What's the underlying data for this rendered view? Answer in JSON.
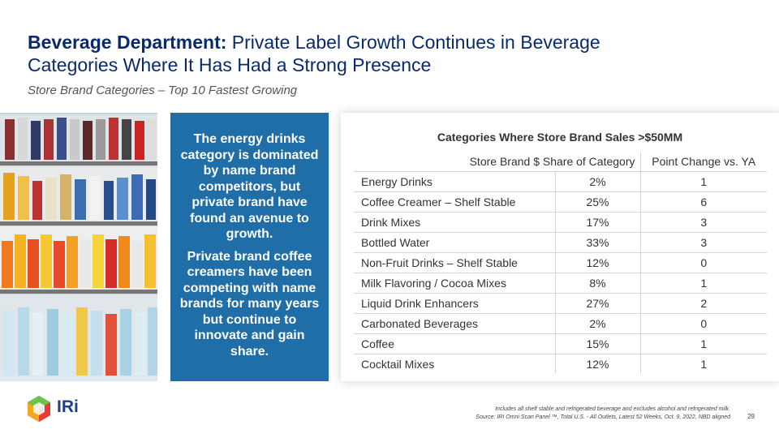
{
  "header": {
    "title_bold": "Beverage Department:",
    "title_rest": " Private Label Growth Continues in Beverage Categories Where It Has Had a Strong Presence",
    "subtitle": "Store Brand Categories – Top 10 Fastest Growing"
  },
  "callout": {
    "paragraph1": "The energy drinks category is dominated by name brand competitors, but private brand have found an avenue to growth.",
    "paragraph2": "Private brand coffee creamers have been competing with name brands for many years but continue to innovate and gain share."
  },
  "table": {
    "title": "Categories Where Store Brand Sales >$50MM",
    "col_share": "Store Brand $ Share of Category",
    "col_change": "Point Change vs. YA",
    "rows": [
      {
        "category": "Energy Drinks",
        "share": "2%",
        "change": "1"
      },
      {
        "category": "Coffee Creamer – Shelf Stable",
        "share": "25%",
        "change": "6"
      },
      {
        "category": "Drink Mixes",
        "share": "17%",
        "change": "3"
      },
      {
        "category": "Bottled Water",
        "share": "33%",
        "change": "3"
      },
      {
        "category": "Non-Fruit Drinks – Shelf Stable",
        "share": "12%",
        "change": "0"
      },
      {
        "category": "Milk Flavoring / Cocoa Mixes",
        "share": "8%",
        "change": "1"
      },
      {
        "category": "Liquid Drink Enhancers",
        "share": "27%",
        "change": "2"
      },
      {
        "category": "Carbonated Beverages",
        "share": "2%",
        "change": "0"
      },
      {
        "category": "Coffee",
        "share": "15%",
        "change": "1"
      },
      {
        "category": "Cocktail Mixes",
        "share": "12%",
        "change": "1"
      }
    ]
  },
  "logo": {
    "text": "IRi"
  },
  "footer": {
    "note1": "Includes all shelf stable and refrigerated beverage and excludes alcohol and refrigerated milk.",
    "note2": "Source: IRI  Omni Scan Panel ™, Total U.S. - All Outlets, Latest 52 Weeks, Oct. 9, 2022, NBD aligned",
    "page": "29"
  },
  "colors": {
    "navy": "#0b2a6b",
    "callout_blue": "#1f6ea7"
  }
}
